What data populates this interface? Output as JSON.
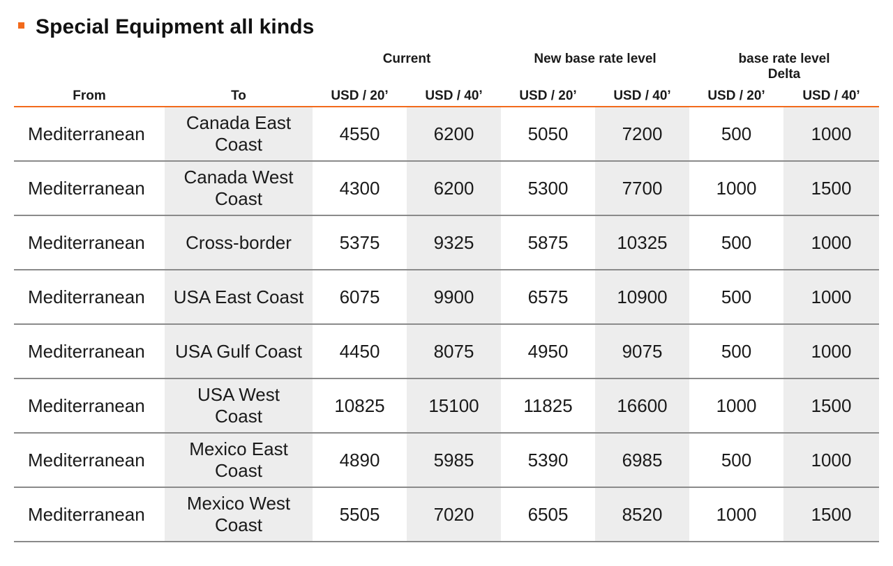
{
  "title": "Special Equipment all kinds",
  "colors": {
    "accent": "#f26a1b",
    "shade": "#ededed",
    "row_divider": "#8a8a8a"
  },
  "table": {
    "groups": {
      "current": "Current",
      "new_base": "New base rate level",
      "delta": "base rate level\nDelta"
    },
    "columns": {
      "from": "From",
      "to": "To",
      "cur20": "USD / 20’",
      "cur40": "USD / 40’",
      "new20": "USD / 20’",
      "new40": "USD / 40’",
      "delta20": "USD / 20’",
      "delta40": "USD / 40’"
    },
    "rows": [
      {
        "from": "Mediterranean",
        "to": "Canada East Coast",
        "cur20": "4550",
        "cur40": "6200",
        "new20": "5050",
        "new40": "7200",
        "delta20": "500",
        "delta40": "1000"
      },
      {
        "from": "Mediterranean",
        "to": "Canada West Coast",
        "cur20": "4300",
        "cur40": "6200",
        "new20": "5300",
        "new40": "7700",
        "delta20": "1000",
        "delta40": "1500"
      },
      {
        "from": "Mediterranean",
        "to": "Cross-border",
        "cur20": "5375",
        "cur40": "9325",
        "new20": "5875",
        "new40": "10325",
        "delta20": "500",
        "delta40": "1000"
      },
      {
        "from": "Mediterranean",
        "to": "USA East Coast",
        "cur20": "6075",
        "cur40": "9900",
        "new20": "6575",
        "new40": "10900",
        "delta20": "500",
        "delta40": "1000"
      },
      {
        "from": "Mediterranean",
        "to": "USA Gulf Coast",
        "cur20": "4450",
        "cur40": "8075",
        "new20": "4950",
        "new40": "9075",
        "delta20": "500",
        "delta40": "1000"
      },
      {
        "from": "Mediterranean",
        "to": "USA West Coast",
        "cur20": "10825",
        "cur40": "15100",
        "new20": "11825",
        "new40": "16600",
        "delta20": "1000",
        "delta40": "1500"
      },
      {
        "from": "Mediterranean",
        "to": "Mexico East Coast",
        "cur20": "4890",
        "cur40": "5985",
        "new20": "5390",
        "new40": "6985",
        "delta20": "500",
        "delta40": "1000"
      },
      {
        "from": "Mediterranean",
        "to": "Mexico West Coast",
        "cur20": "5505",
        "cur40": "7020",
        "new20": "6505",
        "new40": "8520",
        "delta20": "1000",
        "delta40": "1500"
      }
    ]
  }
}
